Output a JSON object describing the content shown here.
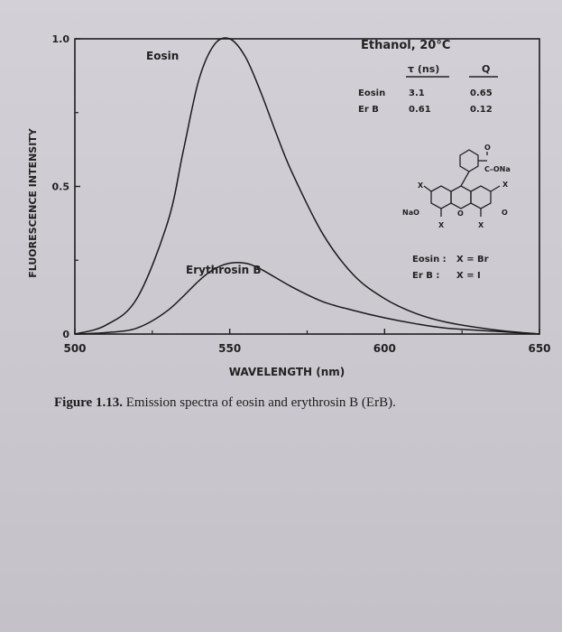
{
  "chart_data": {
    "type": "line",
    "xlabel": "WAVELENGTH (nm)",
    "ylabel": "FLUORESCENCE INTENSITY",
    "xlim": [
      500,
      650
    ],
    "ylim": [
      0,
      1.0
    ],
    "x_ticks": [
      "500",
      "550",
      "600",
      "650"
    ],
    "y_ticks": [
      "0",
      "0.5",
      "1.0"
    ],
    "grid": false,
    "series": [
      {
        "name": "Eosin",
        "x": [
          500,
          510,
          520,
          530,
          535,
          540,
          545,
          550,
          555,
          560,
          565,
          570,
          580,
          590,
          600,
          610,
          620,
          635,
          650
        ],
        "values": [
          0.0,
          0.03,
          0.12,
          0.38,
          0.62,
          0.86,
          0.98,
          1.0,
          0.94,
          0.82,
          0.68,
          0.55,
          0.34,
          0.2,
          0.12,
          0.07,
          0.04,
          0.015,
          0.0
        ]
      },
      {
        "name": "Erythrosin B",
        "x": [
          500,
          510,
          520,
          530,
          540,
          545,
          550,
          555,
          560,
          570,
          580,
          590,
          600,
          610,
          620,
          635,
          650
        ],
        "values": [
          0.0,
          0.005,
          0.02,
          0.08,
          0.18,
          0.22,
          0.24,
          0.24,
          0.22,
          0.16,
          0.11,
          0.08,
          0.055,
          0.035,
          0.02,
          0.01,
          0.0
        ]
      }
    ],
    "annotations": {
      "eosin_label": "Eosin",
      "erb_label": "Erythrosin B",
      "solvent": "Ethanol,  20°C",
      "table_headers": [
        "τ (ns)",
        "Q"
      ],
      "table_rows": [
        {
          "name": "Eosin",
          "tau": "3.1",
          "q": "0.65"
        },
        {
          "name": "Er B",
          "tau": "0.61",
          "q": "0.12"
        }
      ],
      "structure_labels": {
        "ona": "C–ONa",
        "o_top": "O",
        "nao": "NaO",
        "o_ring": "O",
        "o_keto": "O",
        "x": "X"
      },
      "substituents": [
        {
          "name": "Eosin :",
          "value": "X = Br"
        },
        {
          "name": "Er B :",
          "value": "X = I"
        }
      ]
    }
  },
  "caption": {
    "label": "Figure 1.13.",
    "text": " Emission spectra of eosin and erythrosin B (ErB)."
  }
}
